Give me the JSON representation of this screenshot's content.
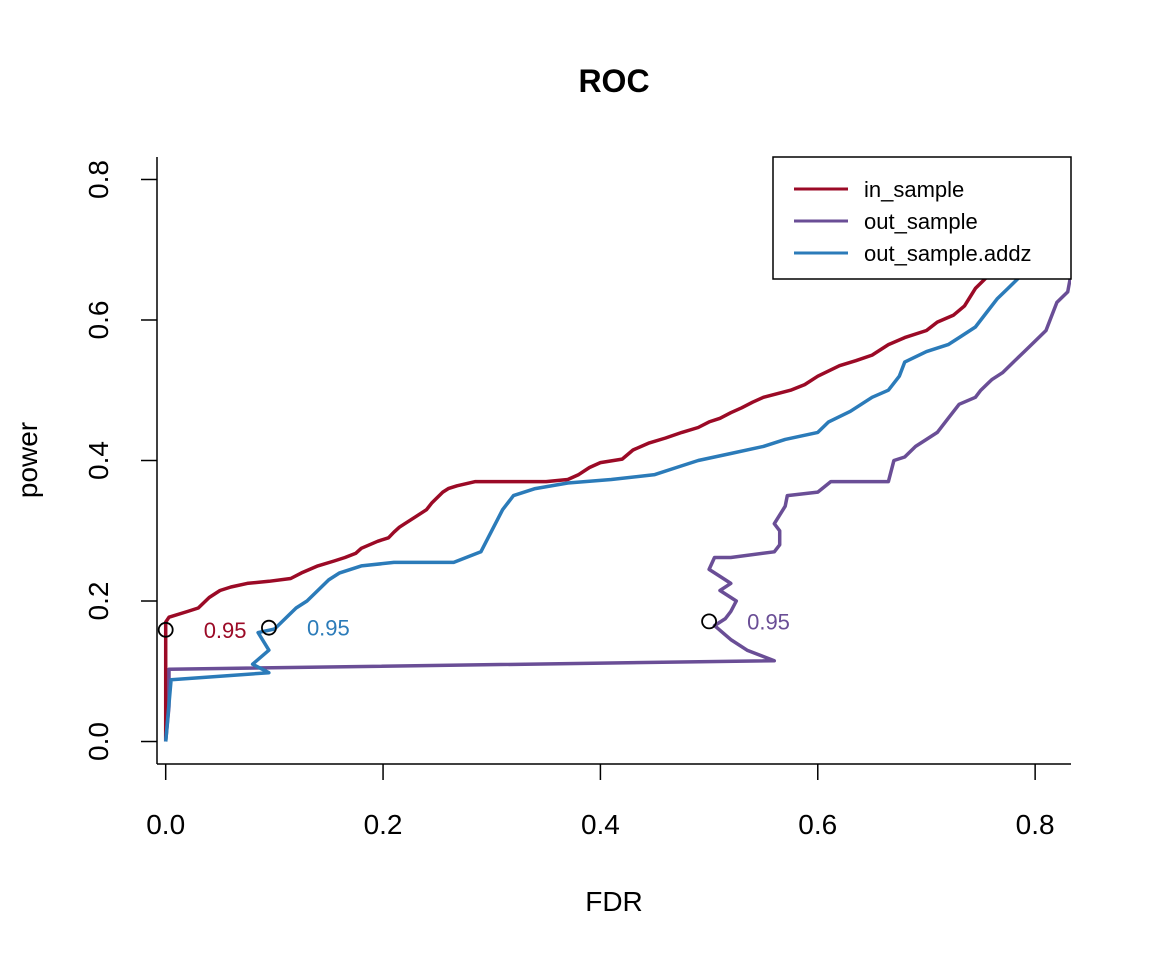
{
  "chart_data": {
    "type": "line",
    "title": "ROC",
    "xlabel": "FDR",
    "ylabel": "power",
    "xlim": [
      -0.008,
      0.833
    ],
    "ylim": [
      -0.032,
      0.832
    ],
    "xticks": [
      "0.0",
      "0.2",
      "0.4",
      "0.6",
      "0.8"
    ],
    "yticks": [
      "0.0",
      "0.2",
      "0.4",
      "0.6",
      "0.8"
    ],
    "legend_position": "top-right",
    "series": [
      {
        "name": "in_sample",
        "color": "#9B0A26",
        "points": [
          [
            0.0,
            0.0
          ],
          [
            0.0,
            0.17
          ],
          [
            0.003,
            0.177
          ],
          [
            0.02,
            0.185
          ],
          [
            0.03,
            0.19
          ],
          [
            0.04,
            0.205
          ],
          [
            0.05,
            0.215
          ],
          [
            0.06,
            0.22
          ],
          [
            0.075,
            0.225
          ],
          [
            0.095,
            0.228
          ],
          [
            0.115,
            0.232
          ],
          [
            0.125,
            0.24
          ],
          [
            0.14,
            0.25
          ],
          [
            0.155,
            0.257
          ],
          [
            0.165,
            0.262
          ],
          [
            0.175,
            0.268
          ],
          [
            0.18,
            0.275
          ],
          [
            0.195,
            0.285
          ],
          [
            0.205,
            0.29
          ],
          [
            0.21,
            0.298
          ],
          [
            0.215,
            0.305
          ],
          [
            0.22,
            0.31
          ],
          [
            0.23,
            0.32
          ],
          [
            0.24,
            0.33
          ],
          [
            0.245,
            0.34
          ],
          [
            0.255,
            0.355
          ],
          [
            0.26,
            0.36
          ],
          [
            0.268,
            0.364
          ],
          [
            0.285,
            0.37
          ],
          [
            0.35,
            0.37
          ],
          [
            0.37,
            0.373
          ],
          [
            0.38,
            0.38
          ],
          [
            0.39,
            0.39
          ],
          [
            0.4,
            0.397
          ],
          [
            0.42,
            0.402
          ],
          [
            0.43,
            0.415
          ],
          [
            0.445,
            0.425
          ],
          [
            0.46,
            0.432
          ],
          [
            0.475,
            0.44
          ],
          [
            0.49,
            0.447
          ],
          [
            0.5,
            0.455
          ],
          [
            0.51,
            0.46
          ],
          [
            0.52,
            0.468
          ],
          [
            0.53,
            0.475
          ],
          [
            0.54,
            0.483
          ],
          [
            0.55,
            0.49
          ],
          [
            0.575,
            0.5
          ],
          [
            0.588,
            0.508
          ],
          [
            0.6,
            0.52
          ],
          [
            0.62,
            0.535
          ],
          [
            0.635,
            0.542
          ],
          [
            0.65,
            0.55
          ],
          [
            0.665,
            0.565
          ],
          [
            0.68,
            0.575
          ],
          [
            0.7,
            0.585
          ],
          [
            0.71,
            0.597
          ],
          [
            0.725,
            0.607
          ],
          [
            0.735,
            0.62
          ],
          [
            0.745,
            0.645
          ],
          [
            0.755,
            0.66
          ],
          [
            0.76,
            0.67
          ]
        ]
      },
      {
        "name": "out_sample",
        "color": "#6A4E96",
        "points": [
          [
            0.0,
            0.0
          ],
          [
            0.003,
            0.05
          ],
          [
            0.003,
            0.103
          ],
          [
            0.56,
            0.115
          ],
          [
            0.535,
            0.13
          ],
          [
            0.52,
            0.145
          ],
          [
            0.505,
            0.165
          ],
          [
            0.515,
            0.175
          ],
          [
            0.52,
            0.185
          ],
          [
            0.525,
            0.2
          ],
          [
            0.51,
            0.215
          ],
          [
            0.52,
            0.225
          ],
          [
            0.51,
            0.235
          ],
          [
            0.5,
            0.245
          ],
          [
            0.505,
            0.262
          ],
          [
            0.52,
            0.262
          ],
          [
            0.56,
            0.27
          ],
          [
            0.565,
            0.28
          ],
          [
            0.565,
            0.3
          ],
          [
            0.56,
            0.31
          ],
          [
            0.57,
            0.335
          ],
          [
            0.572,
            0.35
          ],
          [
            0.6,
            0.355
          ],
          [
            0.612,
            0.37
          ],
          [
            0.64,
            0.37
          ],
          [
            0.665,
            0.37
          ],
          [
            0.67,
            0.4
          ],
          [
            0.68,
            0.405
          ],
          [
            0.69,
            0.42
          ],
          [
            0.7,
            0.43
          ],
          [
            0.71,
            0.44
          ],
          [
            0.72,
            0.46
          ],
          [
            0.73,
            0.48
          ],
          [
            0.745,
            0.49
          ],
          [
            0.75,
            0.5
          ],
          [
            0.76,
            0.515
          ],
          [
            0.77,
            0.525
          ],
          [
            0.78,
            0.54
          ],
          [
            0.79,
            0.555
          ],
          [
            0.8,
            0.57
          ],
          [
            0.81,
            0.585
          ],
          [
            0.815,
            0.605
          ],
          [
            0.82,
            0.625
          ],
          [
            0.83,
            0.64
          ],
          [
            0.833,
            0.665
          ]
        ]
      },
      {
        "name": "out_sample.addz",
        "color": "#2B7BB9",
        "points": [
          [
            0.0,
            0.0
          ],
          [
            0.005,
            0.088
          ],
          [
            0.095,
            0.098
          ],
          [
            0.08,
            0.11
          ],
          [
            0.095,
            0.13
          ],
          [
            0.085,
            0.155
          ],
          [
            0.1,
            0.16
          ],
          [
            0.11,
            0.175
          ],
          [
            0.12,
            0.19
          ],
          [
            0.13,
            0.2
          ],
          [
            0.14,
            0.215
          ],
          [
            0.15,
            0.23
          ],
          [
            0.16,
            0.24
          ],
          [
            0.18,
            0.25
          ],
          [
            0.21,
            0.255
          ],
          [
            0.265,
            0.255
          ],
          [
            0.29,
            0.27
          ],
          [
            0.295,
            0.285
          ],
          [
            0.3,
            0.3
          ],
          [
            0.305,
            0.315
          ],
          [
            0.31,
            0.33
          ],
          [
            0.32,
            0.35
          ],
          [
            0.34,
            0.36
          ],
          [
            0.37,
            0.368
          ],
          [
            0.41,
            0.373
          ],
          [
            0.45,
            0.38
          ],
          [
            0.47,
            0.39
          ],
          [
            0.49,
            0.4
          ],
          [
            0.52,
            0.41
          ],
          [
            0.55,
            0.42
          ],
          [
            0.57,
            0.43
          ],
          [
            0.6,
            0.44
          ],
          [
            0.61,
            0.455
          ],
          [
            0.63,
            0.47
          ],
          [
            0.65,
            0.49
          ],
          [
            0.665,
            0.5
          ],
          [
            0.675,
            0.52
          ],
          [
            0.68,
            0.54
          ],
          [
            0.7,
            0.555
          ],
          [
            0.72,
            0.565
          ],
          [
            0.73,
            0.575
          ],
          [
            0.745,
            0.59
          ],
          [
            0.755,
            0.61
          ],
          [
            0.765,
            0.63
          ],
          [
            0.775,
            0.645
          ],
          [
            0.785,
            0.66
          ],
          [
            0.795,
            0.67
          ]
        ]
      }
    ],
    "threshold_markers": [
      {
        "series": "in_sample",
        "x": 0.0,
        "y": 0.159,
        "label": "0.95",
        "color": "#9B0A26"
      },
      {
        "series": "out_sample.addz",
        "x": 0.095,
        "y": 0.162,
        "label": "0.95",
        "color": "#2B7BB9"
      },
      {
        "series": "out_sample",
        "x": 0.5,
        "y": 0.171,
        "label": "0.95",
        "color": "#6A4E96"
      }
    ]
  }
}
